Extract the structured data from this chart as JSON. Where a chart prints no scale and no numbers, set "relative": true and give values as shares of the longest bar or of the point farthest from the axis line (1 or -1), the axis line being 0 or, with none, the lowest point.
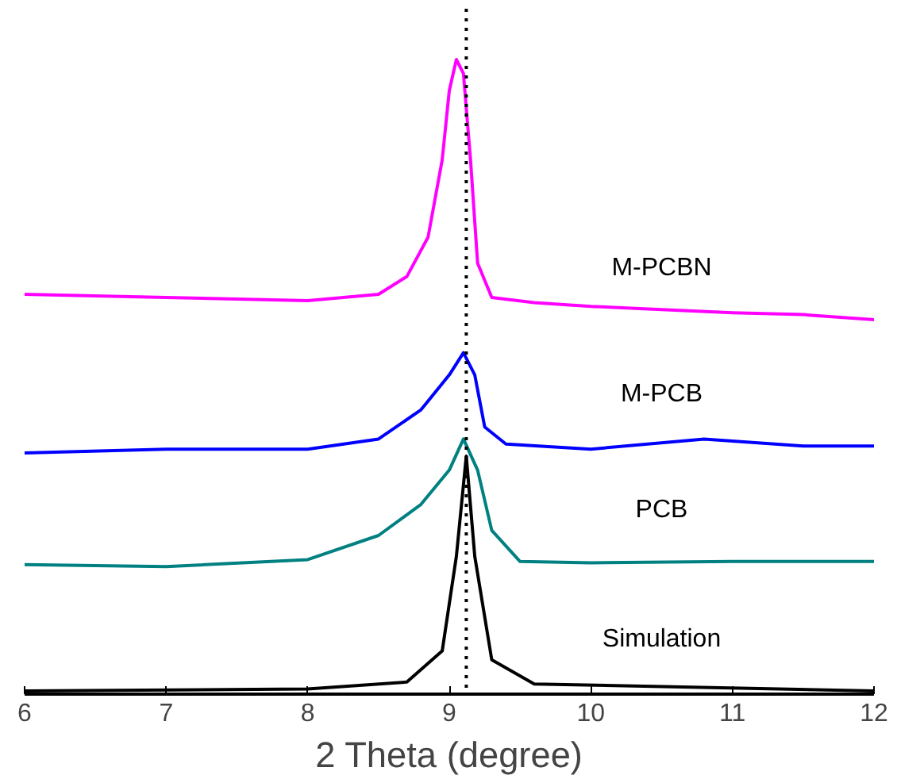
{
  "chart_data": {
    "type": "line",
    "relative": true,
    "xlabel": "2 Theta (degree)",
    "xlim": [
      6,
      12
    ],
    "xticks": [
      6,
      7,
      8,
      9,
      10,
      11,
      12
    ],
    "grid": false,
    "line_style": "solid",
    "marker": "none",
    "ref_lines": [
      {
        "axis": "x",
        "value": 9.12,
        "color": "#000000",
        "line_style": "dotted"
      }
    ],
    "series": [
      {
        "name": "M-PCBN",
        "color": "#ff00ff",
        "x": [
          6,
          7,
          8,
          8.5,
          8.7,
          8.85,
          8.95,
          9.0,
          9.05,
          9.1,
          9.15,
          9.2,
          9.3,
          9.6,
          10,
          10.5,
          11,
          11.5,
          12
        ],
        "values": [
          0.63,
          0.625,
          0.62,
          0.63,
          0.658,
          0.72,
          0.842,
          0.951,
          1.0,
          0.978,
          0.842,
          0.679,
          0.625,
          0.617,
          0.611,
          0.606,
          0.601,
          0.598,
          0.59
        ]
      },
      {
        "name": "M-PCB",
        "color": "#0000ff",
        "x": [
          6,
          7,
          8,
          8.5,
          8.8,
          9.0,
          9.1,
          9.18,
          9.25,
          9.4,
          10,
          10.8,
          11.5,
          12
        ],
        "values": [
          0.38,
          0.386,
          0.386,
          0.402,
          0.448,
          0.503,
          0.538,
          0.503,
          0.421,
          0.394,
          0.386,
          0.402,
          0.391,
          0.391
        ]
      },
      {
        "name": "PCB",
        "color": "#008080",
        "x": [
          6,
          7,
          8,
          8.5,
          8.8,
          9.0,
          9.1,
          9.2,
          9.3,
          9.5,
          10,
          11,
          12
        ],
        "values": [
          0.204,
          0.201,
          0.212,
          0.25,
          0.299,
          0.353,
          0.402,
          0.353,
          0.258,
          0.209,
          0.207,
          0.209,
          0.209
        ]
      },
      {
        "name": "Simulation",
        "color": "#000000",
        "x": [
          6,
          8,
          8.7,
          8.95,
          9.05,
          9.12,
          9.18,
          9.3,
          9.6,
          12
        ],
        "values": [
          0.005,
          0.008,
          0.019,
          0.068,
          0.217,
          0.375,
          0.217,
          0.054,
          0.016,
          0.005
        ]
      }
    ]
  }
}
